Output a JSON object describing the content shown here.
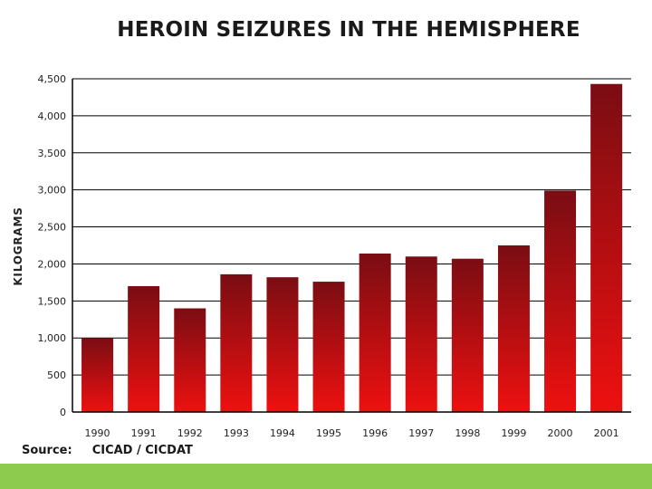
{
  "colors": {
    "bar_top": "#7a0d13",
    "bar_bottom": "#ee1010",
    "footer_bar": "#8ccb4e",
    "gridline": "#000000"
  },
  "source": {
    "label": "Source:",
    "value": "CICAD / CICDAT"
  },
  "chart_data": {
    "type": "bar",
    "title": "HEROIN SEIZURES IN THE HEMISPHERE",
    "xlabel": "",
    "ylabel": "KILOGRAMS",
    "ylim": [
      0,
      4500
    ],
    "yticks": [
      0,
      500,
      1000,
      1500,
      2000,
      2500,
      3000,
      3500,
      4000,
      4500
    ],
    "ytick_labels": [
      "0",
      "500",
      "1,000",
      "1,500",
      "2,000",
      "2,500",
      "3,000",
      "3,500",
      "4,000",
      "4,500"
    ],
    "grid": true,
    "legend": "none",
    "categories": [
      "1990",
      "1991",
      "1992",
      "1993",
      "1994",
      "1995",
      "1996",
      "1997",
      "1998",
      "1999",
      "2000",
      "2001"
    ],
    "values": [
      1000,
      1700,
      1400,
      1860,
      1820,
      1760,
      2140,
      2100,
      2070,
      2250,
      2990,
      4430
    ]
  }
}
